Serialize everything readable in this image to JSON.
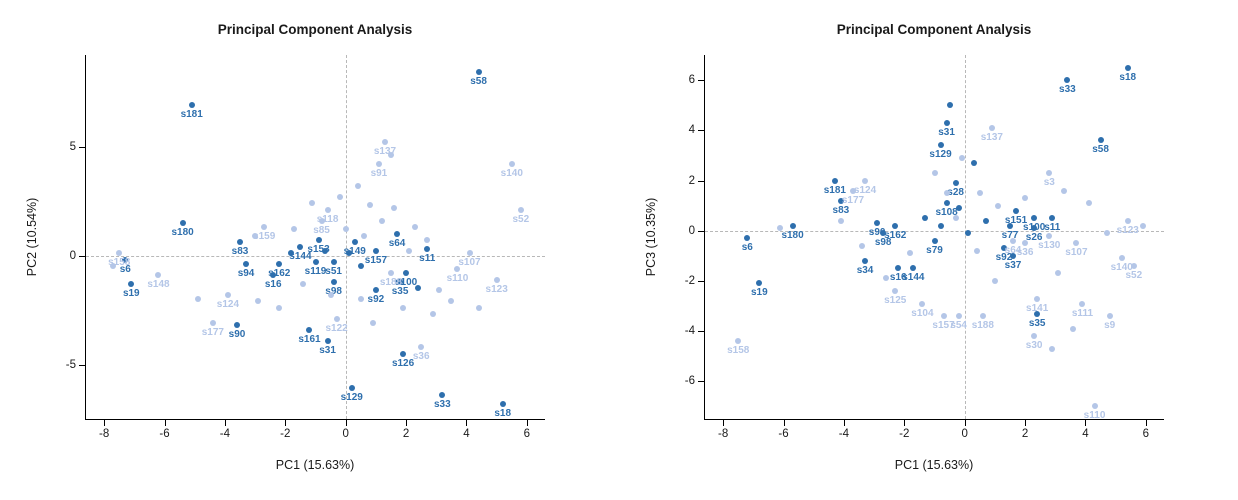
{
  "figure": {
    "background": "#ffffff",
    "panel_count": 2
  },
  "colors": {
    "dark_group": "#2e6fad",
    "light_group": "#b4c6e7",
    "zero_line": "#b8b8b8"
  },
  "chart_data": [
    {
      "type": "scatter",
      "title": "Principal Component Analysis",
      "xlabel": "PC1 (15.63%)",
      "ylabel": "PC2 (10.54%)",
      "xlim": [
        -8.6,
        6.6
      ],
      "ylim": [
        -7.5,
        9.2
      ],
      "xticks": [
        -8,
        -6,
        -4,
        -2,
        0,
        2,
        4,
        6
      ],
      "yticks": [
        -5,
        0,
        5
      ],
      "zero_lines": true,
      "legend": "none",
      "series": [
        {
          "name": "dark-group",
          "color": "#2e6fad",
          "points": [
            {
              "x": -5.1,
              "y": 6.9,
              "label": "s181"
            },
            {
              "x": 4.4,
              "y": 8.4,
              "label": "s58"
            },
            {
              "x": -5.4,
              "y": 1.5,
              "label": "s180"
            },
            {
              "x": -3.5,
              "y": 0.6,
              "label": "s83"
            },
            {
              "x": -3.3,
              "y": -0.4,
              "label": "s94"
            },
            {
              "x": -7.3,
              "y": -0.2,
              "label": "s6"
            },
            {
              "x": -7.1,
              "y": -1.3,
              "label": "s19"
            },
            {
              "x": -3.6,
              "y": -3.2,
              "label": "s90"
            },
            {
              "x": -1.2,
              "y": -3.4,
              "label": "s161"
            },
            {
              "x": -0.6,
              "y": -3.9,
              "label": "s31"
            },
            {
              "x": 1.9,
              "y": -4.5,
              "label": "s126"
            },
            {
              "x": 0.2,
              "y": -6.1,
              "label": "s129"
            },
            {
              "x": 3.2,
              "y": -6.4,
              "label": "s33"
            },
            {
              "x": 5.2,
              "y": -6.8,
              "label": "s18"
            },
            {
              "x": 1.0,
              "y": -1.6,
              "label": "s92"
            },
            {
              "x": 1.8,
              "y": -1.2,
              "label": "s35"
            },
            {
              "x": 2.0,
              "y": -0.8,
              "label": "s100"
            },
            {
              "x": 2.7,
              "y": 0.3,
              "label": "s11"
            },
            {
              "x": 1.0,
              "y": 0.2,
              "label": "s157"
            },
            {
              "x": 1.7,
              "y": 1.0,
              "label": "s64"
            },
            {
              "x": -1.5,
              "y": 0.4,
              "label": "s144"
            },
            {
              "x": -2.2,
              "y": -0.4,
              "label": "s162"
            },
            {
              "x": -2.4,
              "y": -0.9,
              "label": "s16"
            },
            {
              "x": -0.9,
              "y": 0.7,
              "label": "s153"
            },
            {
              "x": -1.0,
              "y": -0.3,
              "label": "s119"
            },
            {
              "x": -0.4,
              "y": -0.3,
              "label": "s51"
            },
            {
              "x": 0.3,
              "y": 0.6,
              "label": "s149"
            },
            {
              "x": -0.4,
              "y": -1.2,
              "label": "s98"
            },
            {
              "x": 0.1,
              "y": 0.1
            },
            {
              "x": -0.7,
              "y": 0.2
            },
            {
              "x": 0.5,
              "y": -0.5
            },
            {
              "x": -1.8,
              "y": 0.1
            },
            {
              "x": 2.4,
              "y": -1.5
            }
          ]
        },
        {
          "name": "light-group",
          "color": "#b4c6e7",
          "points": [
            {
              "x": -7.5,
              "y": 0.1,
              "label": "s158"
            },
            {
              "x": -6.2,
              "y": -0.9,
              "label": "s148"
            },
            {
              "x": -3.9,
              "y": -1.8,
              "label": "s124"
            },
            {
              "x": -4.4,
              "y": -3.1,
              "label": "s177"
            },
            {
              "x": -2.7,
              "y": 1.3,
              "label": "s159"
            },
            {
              "x": -0.6,
              "y": 2.1,
              "label": "s118"
            },
            {
              "x": -0.8,
              "y": 1.6,
              "label": "s85"
            },
            {
              "x": 1.3,
              "y": 5.2,
              "label": "s137"
            },
            {
              "x": 1.1,
              "y": 4.2,
              "label": "s91"
            },
            {
              "x": 5.5,
              "y": 4.2,
              "label": "s140"
            },
            {
              "x": 5.8,
              "y": 2.1,
              "label": "s52"
            },
            {
              "x": 4.1,
              "y": 0.1,
              "label": "s107"
            },
            {
              "x": 3.7,
              "y": -0.6,
              "label": "s110"
            },
            {
              "x": 5.0,
              "y": -1.1,
              "label": "s123"
            },
            {
              "x": 1.5,
              "y": -0.8,
              "label": "s188"
            },
            {
              "x": -0.3,
              "y": -2.9,
              "label": "s122"
            },
            {
              "x": 2.5,
              "y": -4.2,
              "label": "s36"
            },
            {
              "x": -7.7,
              "y": -0.5
            },
            {
              "x": -4.9,
              "y": -2.0
            },
            {
              "x": -3.0,
              "y": 0.9
            },
            {
              "x": -2.9,
              "y": -2.1
            },
            {
              "x": -2.2,
              "y": -2.4
            },
            {
              "x": -1.7,
              "y": 1.2
            },
            {
              "x": -1.1,
              "y": 2.4
            },
            {
              "x": -0.2,
              "y": 2.7
            },
            {
              "x": 0.4,
              "y": 3.2
            },
            {
              "x": 0.8,
              "y": 2.3
            },
            {
              "x": 1.6,
              "y": 2.2
            },
            {
              "x": 2.3,
              "y": 1.3
            },
            {
              "x": 2.7,
              "y": 0.7
            },
            {
              "x": 3.1,
              "y": -1.6
            },
            {
              "x": 3.5,
              "y": -2.1
            },
            {
              "x": 2.9,
              "y": -2.7
            },
            {
              "x": 1.9,
              "y": -2.4
            },
            {
              "x": 0.9,
              "y": -3.1
            },
            {
              "x": 4.4,
              "y": -2.4
            },
            {
              "x": 0.0,
              "y": 1.2
            },
            {
              "x": 0.6,
              "y": 0.9
            },
            {
              "x": 1.2,
              "y": 1.6
            },
            {
              "x": -0.5,
              "y": -1.8
            },
            {
              "x": 0.5,
              "y": -2.0
            },
            {
              "x": 1.5,
              "y": 4.6
            },
            {
              "x": 2.1,
              "y": 0.2
            },
            {
              "x": -1.4,
              "y": -1.3
            }
          ]
        }
      ]
    },
    {
      "type": "scatter",
      "title": "Principal Component Analysis",
      "xlabel": "PC1 (15.63%)",
      "ylabel": "PC3 (10.35%)",
      "xlim": [
        -8.6,
        6.6
      ],
      "ylim": [
        -7.5,
        7.0
      ],
      "xticks": [
        -8,
        -6,
        -4,
        -2,
        0,
        2,
        4,
        6
      ],
      "yticks": [
        -6,
        -4,
        -2,
        0,
        2,
        4,
        6
      ],
      "zero_lines": true,
      "legend": "none",
      "series": [
        {
          "name": "dark-group",
          "color": "#2e6fad",
          "points": [
            {
              "x": 5.4,
              "y": 6.5,
              "label": "s18"
            },
            {
              "x": 3.4,
              "y": 6.0,
              "label": "s33"
            },
            {
              "x": -0.6,
              "y": 4.3,
              "label": "s31"
            },
            {
              "x": -0.8,
              "y": 3.4,
              "label": "s129"
            },
            {
              "x": 4.5,
              "y": 3.6,
              "label": "s58"
            },
            {
              "x": -4.3,
              "y": 2.0,
              "label": "s181"
            },
            {
              "x": -4.1,
              "y": 1.2,
              "label": "s83"
            },
            {
              "x": -0.3,
              "y": 1.9,
              "label": "s28"
            },
            {
              "x": -0.6,
              "y": 1.1,
              "label": "s108"
            },
            {
              "x": 1.7,
              "y": 0.8,
              "label": "s151"
            },
            {
              "x": 2.3,
              "y": 0.5,
              "label": "s100"
            },
            {
              "x": 2.9,
              "y": 0.5,
              "label": "s11"
            },
            {
              "x": 1.5,
              "y": 0.2,
              "label": "s77"
            },
            {
              "x": 2.3,
              "y": 0.1,
              "label": "s26"
            },
            {
              "x": -7.2,
              "y": -0.3,
              "label": "s6"
            },
            {
              "x": -5.7,
              "y": 0.2,
              "label": "s180"
            },
            {
              "x": -2.9,
              "y": 0.3,
              "label": "s90"
            },
            {
              "x": -2.7,
              "y": -0.1,
              "label": "s98"
            },
            {
              "x": -2.3,
              "y": 0.2,
              "label": "s162"
            },
            {
              "x": -1.0,
              "y": -0.4,
              "label": "s79"
            },
            {
              "x": 1.3,
              "y": -0.7,
              "label": "s92"
            },
            {
              "x": 1.6,
              "y": -1.0,
              "label": "s37"
            },
            {
              "x": -3.3,
              "y": -1.2,
              "label": "s34"
            },
            {
              "x": -2.2,
              "y": -1.5,
              "label": "s16"
            },
            {
              "x": -1.7,
              "y": -1.5,
              "label": "s144"
            },
            {
              "x": -6.8,
              "y": -2.1,
              "label": "s19"
            },
            {
              "x": 2.4,
              "y": -3.3,
              "label": "s35"
            },
            {
              "x": -0.5,
              "y": 5.0
            },
            {
              "x": 0.3,
              "y": 2.7
            },
            {
              "x": -0.2,
              "y": 0.9
            },
            {
              "x": -0.8,
              "y": 0.2
            },
            {
              "x": 0.1,
              "y": -0.1
            },
            {
              "x": -1.3,
              "y": 0.5
            },
            {
              "x": 0.7,
              "y": 0.4
            }
          ]
        },
        {
          "name": "light-group",
          "color": "#b4c6e7",
          "points": [
            {
              "x": 0.9,
              "y": 4.1,
              "label": "s137"
            },
            {
              "x": -3.3,
              "y": 2.0,
              "label": "s124"
            },
            {
              "x": -3.7,
              "y": 1.6,
              "label": "s177"
            },
            {
              "x": 2.8,
              "y": 2.3,
              "label": "s3"
            },
            {
              "x": 5.4,
              "y": 0.4,
              "label": "s123"
            },
            {
              "x": 3.7,
              "y": -0.5,
              "label": "s107"
            },
            {
              "x": 2.8,
              "y": -0.2,
              "label": "s130"
            },
            {
              "x": 5.2,
              "y": -1.1,
              "label": "s140"
            },
            {
              "x": 5.6,
              "y": -1.4,
              "label": "s52"
            },
            {
              "x": 2.4,
              "y": -2.7,
              "label": "s141"
            },
            {
              "x": 3.9,
              "y": -2.9,
              "label": "s111"
            },
            {
              "x": 4.8,
              "y": -3.4,
              "label": "s9"
            },
            {
              "x": 2.3,
              "y": -4.2,
              "label": "s30"
            },
            {
              "x": -7.5,
              "y": -4.4,
              "label": "s158"
            },
            {
              "x": -1.4,
              "y": -2.9,
              "label": "s104"
            },
            {
              "x": -2.3,
              "y": -2.4,
              "label": "s125"
            },
            {
              "x": -0.7,
              "y": -3.4,
              "label": "s157"
            },
            {
              "x": -0.2,
              "y": -3.4,
              "label": "s54"
            },
            {
              "x": 0.6,
              "y": -3.4,
              "label": "s188"
            },
            {
              "x": 4.3,
              "y": -7.0,
              "label": "s110"
            },
            {
              "x": 1.6,
              "y": -0.4,
              "label": "s64"
            },
            {
              "x": 2.0,
              "y": -0.5,
              "label": "s36"
            },
            {
              "x": -6.1,
              "y": 0.1
            },
            {
              "x": -4.1,
              "y": 0.4
            },
            {
              "x": -3.4,
              "y": -0.6
            },
            {
              "x": -2.6,
              "y": -1.9
            },
            {
              "x": -1.0,
              "y": 2.3
            },
            {
              "x": -0.1,
              "y": 2.9
            },
            {
              "x": 0.5,
              "y": 1.5
            },
            {
              "x": 1.1,
              "y": 1.0
            },
            {
              "x": 2.0,
              "y": 1.3
            },
            {
              "x": 3.3,
              "y": 1.6
            },
            {
              "x": 4.1,
              "y": 1.1
            },
            {
              "x": 4.7,
              "y": -0.1
            },
            {
              "x": 3.1,
              "y": -1.7
            },
            {
              "x": 2.9,
              "y": -4.7
            },
            {
              "x": -0.3,
              "y": 0.5
            },
            {
              "x": 0.4,
              "y": -0.8
            },
            {
              "x": -1.8,
              "y": -0.9
            },
            {
              "x": 5.9,
              "y": 0.2
            },
            {
              "x": 3.6,
              "y": -3.9
            },
            {
              "x": 1.0,
              "y": -2.0
            },
            {
              "x": -0.6,
              "y": 1.5
            }
          ]
        }
      ]
    }
  ]
}
